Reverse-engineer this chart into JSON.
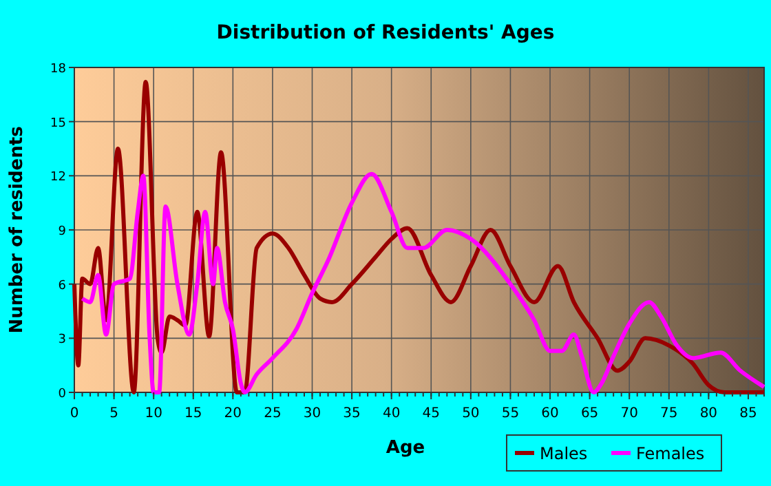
{
  "chart_data": {
    "type": "line",
    "title": "Distribution of Residents' Ages",
    "xlabel": "Age",
    "ylabel": "Number of residents",
    "xlim": [
      0,
      87
    ],
    "xticks": [
      0,
      5,
      10,
      15,
      20,
      25,
      30,
      35,
      40,
      45,
      50,
      55,
      60,
      65,
      70,
      75,
      80,
      85
    ],
    "ylim": [
      0,
      18
    ],
    "yticks": [
      0,
      3,
      6,
      9,
      12,
      15,
      18
    ],
    "grid": true,
    "legend": "bottom right",
    "marker": "none",
    "line_style": "solid",
    "series": [
      {
        "name": "Males",
        "color": "#990000",
        "x": [
          0,
          0.5,
          1,
          2,
          3,
          4,
          5.5,
          7.5,
          9,
          10.5,
          11,
          12,
          13,
          14,
          15.5,
          17,
          18.5,
          20.5,
          21.5,
          23,
          25,
          27,
          29,
          31,
          32.5,
          35,
          38,
          40,
          42,
          45,
          47.5,
          50,
          52.5,
          55,
          58,
          61,
          63,
          66,
          68.5,
          70,
          72,
          75,
          78,
          80,
          82,
          87
        ],
        "values": [
          6,
          1.5,
          6.3,
          6,
          8,
          4,
          13.5,
          0,
          17.2,
          3,
          2.2,
          4.2,
          4,
          3.7,
          10,
          3.1,
          13.3,
          0,
          0,
          8,
          8.8,
          8,
          6.5,
          5.2,
          5,
          6,
          7.5,
          8.5,
          9.1,
          6.5,
          5,
          7,
          9,
          7,
          5,
          7,
          5,
          3,
          1.2,
          1.7,
          3,
          2.6,
          1.6,
          0.4,
          0,
          0
        ]
      },
      {
        "name": "Females",
        "color": "#ff00ff",
        "x": [
          1,
          2,
          3,
          4,
          5,
          7,
          8,
          8.7,
          9.5,
          10,
          10.7,
          11.5,
          13,
          14.5,
          15.5,
          16.5,
          17.5,
          18,
          19,
          20,
          21,
          21.5,
          23,
          25,
          28,
          30,
          32,
          35,
          37.5,
          40,
          42,
          44,
          47,
          50,
          55,
          58,
          60,
          61.5,
          63,
          64,
          65.5,
          66.5,
          68,
          70,
          72.5,
          74,
          76,
          78,
          81.5,
          84,
          87
        ],
        "values": [
          5.2,
          5,
          6.5,
          3.2,
          6,
          6.3,
          10,
          12,
          3,
          0,
          0,
          10.3,
          6,
          3.2,
          6,
          10,
          6,
          8,
          5,
          3.5,
          0.5,
          0,
          1,
          1.9,
          3.5,
          5.5,
          7.3,
          10.5,
          12.1,
          10,
          8,
          8,
          9,
          8.5,
          6,
          4,
          2.3,
          2.3,
          3.2,
          2,
          0,
          0.5,
          2,
          3.8,
          5,
          4.2,
          2.6,
          1.9,
          2.2,
          1.2,
          0.3
        ]
      }
    ]
  }
}
